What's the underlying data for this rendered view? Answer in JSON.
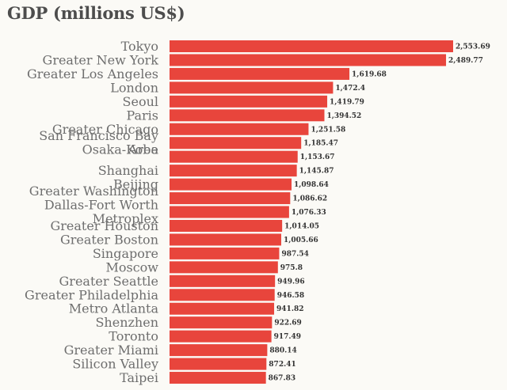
{
  "chart_data": {
    "type": "bar",
    "orientation": "horizontal",
    "title": "GDP (millions US$)",
    "xlabel": "",
    "ylabel": "",
    "grid": false,
    "xlim": [
      0,
      2553.69
    ],
    "bar_color": "#e8453c",
    "categories": [
      "Tokyo",
      "Greater New York",
      "Greater Los Angeles",
      "London",
      "Seoul",
      "Paris",
      "Greater Chicago",
      "San Francisco Bay Area",
      "Osaka-Kobe",
      "Shanghai",
      "Beijing",
      "Greater Washington",
      "Dallas-Fort Worth Metroplex",
      "Greater Houston",
      "Greater Boston",
      "Singapore",
      "Moscow",
      "Greater Seattle",
      "Greater Philadelphia",
      "Metro Atlanta",
      "Shenzhen",
      "Toronto",
      "Greater Miami",
      "Silicon Valley",
      "Taipei"
    ],
    "values": [
      2553.69,
      2489.77,
      1619.68,
      1472.4,
      1419.79,
      1394.52,
      1251.58,
      1185.47,
      1153.67,
      1145.87,
      1098.64,
      1086.62,
      1076.33,
      1014.05,
      1005.66,
      987.54,
      975.8,
      949.96,
      946.58,
      941.82,
      922.69,
      917.49,
      880.14,
      872.41,
      867.83
    ],
    "value_labels": [
      "2,553.69",
      "2,489.77",
      "1,619.68",
      "1,472.4",
      "1,419.79",
      "1,394.52",
      "1,251.58",
      "1,185.47",
      "1,153.67",
      "1,145.87",
      "1,098.64",
      "1,086.62",
      "1,076.33",
      "1,014.05",
      "1,005.66",
      "987.54",
      "975.8",
      "949.96",
      "946.58",
      "941.82",
      "922.69",
      "917.49",
      "880.14",
      "872.41",
      "867.83"
    ]
  }
}
